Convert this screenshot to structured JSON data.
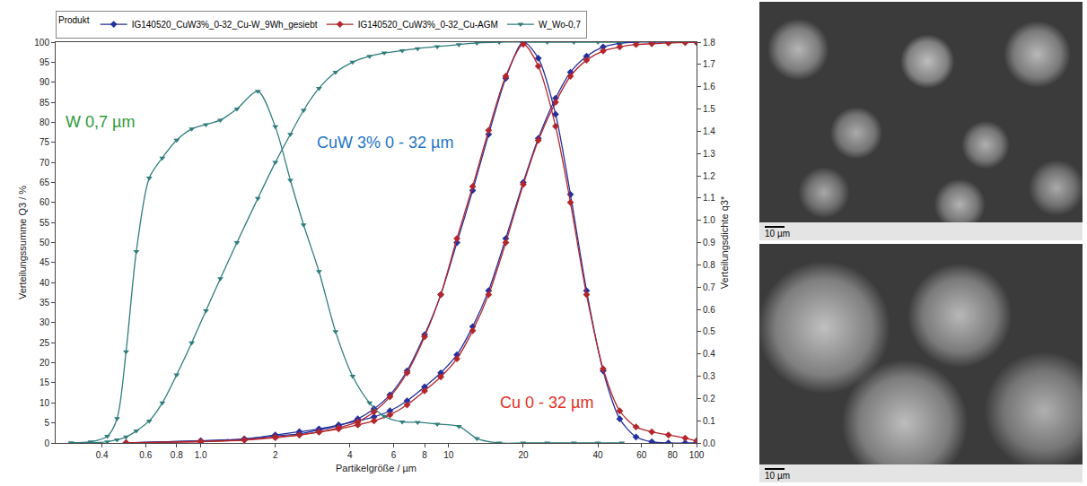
{
  "chart_data": {
    "type": "line",
    "xlabel": "Partikelgröße / µm",
    "ylabel": "Verteilungssumme Q3 / %",
    "y2label": "Verteilungsdichte q3*",
    "legend_title": "Produkt",
    "legend": "top",
    "log": "x",
    "grid": false,
    "xlim": [
      0.26,
      100
    ],
    "xticks": [
      0.4,
      0.6,
      0.8,
      {
        "value": 1,
        "label": "1.0"
      },
      2,
      4,
      6,
      8,
      10,
      20,
      40,
      60,
      80,
      100
    ],
    "ylim": [
      0,
      100
    ],
    "yticks": [
      0,
      5,
      10,
      15,
      20,
      25,
      30,
      35,
      40,
      45,
      50,
      55,
      60,
      65,
      70,
      75,
      80,
      85,
      90,
      95,
      100
    ],
    "y2lim": [
      0,
      1.8
    ],
    "y2ticks": [
      {
        "value": 0,
        "label": "0.0"
      },
      0.1,
      0.2,
      0.3,
      0.4,
      0.5,
      0.6,
      0.7,
      0.8,
      0.9,
      {
        "value": 1,
        "label": "1.0"
      },
      1.1,
      1.2,
      1.3,
      1.4,
      1.5,
      1.6,
      1.7,
      1.8
    ],
    "series": [
      {
        "name": "IG140520_CuW3%_0-32_Cu-W_9Wh_gesiebt",
        "color": "#24309e",
        "marker": "diamond",
        "line_style": "solid",
        "axis": "y",
        "x": [
          0.5,
          1,
          1.5,
          2,
          2.5,
          3,
          3.6,
          4.3,
          5,
          5.8,
          6.8,
          8,
          9.3,
          10.8,
          12.5,
          14.5,
          17,
          20,
          23,
          27,
          31,
          36,
          42,
          49,
          57,
          66,
          77,
          90,
          100
        ],
        "values": [
          0,
          0.5,
          1,
          2,
          2.8,
          3.5,
          4.5,
          5.5,
          6.5,
          8,
          10.5,
          14,
          17.5,
          22,
          29,
          38,
          51,
          65,
          76,
          86,
          92.5,
          96.5,
          98.8,
          99.7,
          100,
          100,
          100,
          100,
          100
        ]
      },
      {
        "name": "IG140520_CuW3%_0-32_Cu-AGM",
        "color": "#b3262b",
        "marker": "diamond",
        "line_style": "solid",
        "axis": "y",
        "x": [
          0.5,
          1,
          1.5,
          2,
          2.5,
          3,
          3.6,
          4.3,
          5,
          5.8,
          6.8,
          8,
          9.3,
          10.8,
          12.5,
          14.5,
          17,
          20,
          23,
          27,
          31,
          36,
          42,
          49,
          57,
          66,
          77,
          90,
          100
        ],
        "values": [
          0,
          0.3,
          0.7,
          1.3,
          2,
          2.7,
          3.5,
          4.5,
          5.5,
          7,
          9.5,
          13,
          16.5,
          21,
          28,
          37,
          50,
          64.5,
          75.5,
          85,
          91.5,
          95.5,
          97.8,
          98.8,
          99.4,
          99.6,
          99.8,
          99.9,
          100
        ]
      },
      {
        "name": "W_Wo-0,7",
        "color": "#2f7d7a",
        "marker": "triangle-down",
        "line_style": "solid",
        "axis": "y",
        "x": [
          0.3,
          0.36,
          0.42,
          0.46,
          0.5,
          0.55,
          0.62,
          0.7,
          0.8,
          0.92,
          1.05,
          1.2,
          1.4,
          1.7,
          2.0,
          2.3,
          2.6,
          3.0,
          3.5,
          4.1,
          4.8,
          5.5,
          6.5,
          7.5,
          9,
          11,
          13,
          16,
          20,
          25,
          32,
          40,
          50
        ],
        "values": [
          0,
          0,
          0.3,
          0.8,
          1.5,
          3,
          5.5,
          10,
          17,
          25,
          33,
          41,
          50,
          61,
          70,
          77,
          83,
          88.5,
          92.5,
          95,
          96.5,
          97.3,
          97.9,
          98.4,
          98.9,
          99.4,
          99.8,
          100,
          100,
          100,
          100,
          100,
          100
        ]
      },
      {
        "name": "IG140520_CuW3%_0-32_Cu-W_9Wh_gesiebt",
        "color": "#24309e",
        "marker": "diamond",
        "line_style": "solid",
        "axis": "y2",
        "x": [
          0.5,
          1,
          1.5,
          2,
          2.5,
          3,
          3.6,
          4.3,
          5,
          5.8,
          6.8,
          8,
          9.3,
          10.8,
          12.5,
          14.5,
          17,
          20,
          23,
          27,
          31,
          36,
          42,
          49,
          57,
          66,
          77,
          90,
          100
        ],
        "values": [
          0,
          0.009,
          0.018,
          0.032,
          0.041,
          0.058,
          0.077,
          0.108,
          0.153,
          0.216,
          0.324,
          0.486,
          0.666,
          0.9,
          1.134,
          1.386,
          1.638,
          1.8,
          1.728,
          1.476,
          1.116,
          0.684,
          0.324,
          0.108,
          0.027,
          0.005,
          0,
          0,
          0
        ]
      },
      {
        "name": "IG140520_CuW3%_0-32_Cu-AGM",
        "color": "#b3262b",
        "marker": "diamond",
        "line_style": "solid",
        "axis": "y2",
        "x": [
          0.5,
          1,
          1.5,
          2,
          2.5,
          3,
          3.6,
          4.3,
          5,
          5.8,
          6.8,
          8,
          9.3,
          10.8,
          12.5,
          14.5,
          17,
          20,
          23,
          27,
          31,
          36,
          42,
          49,
          57,
          66,
          77,
          90,
          100
        ],
        "values": [
          0,
          0.007,
          0.014,
          0.027,
          0.036,
          0.05,
          0.068,
          0.095,
          0.14,
          0.207,
          0.315,
          0.477,
          0.666,
          0.918,
          1.152,
          1.404,
          1.647,
          1.791,
          1.692,
          1.422,
          1.08,
          0.666,
          0.333,
          0.144,
          0.072,
          0.05,
          0.036,
          0.022,
          0.009
        ]
      },
      {
        "name": "W_Wo-0,7",
        "color": "#2f7d7a",
        "marker": "triangle-down",
        "line_style": "solid",
        "axis": "y2",
        "x": [
          0.3,
          0.36,
          0.42,
          0.46,
          0.5,
          0.55,
          0.62,
          0.7,
          0.8,
          0.92,
          1.05,
          1.2,
          1.4,
          1.7,
          2.0,
          2.3,
          2.6,
          3.0,
          3.5,
          4.1,
          4.8,
          5.5,
          6.5,
          7.5,
          9,
          11,
          13,
          16,
          20,
          25,
          32,
          40,
          50
        ],
        "values": [
          0,
          0.005,
          0.03,
          0.11,
          0.41,
          0.86,
          1.19,
          1.28,
          1.36,
          1.41,
          1.43,
          1.45,
          1.5,
          1.58,
          1.42,
          1.18,
          0.98,
          0.77,
          0.5,
          0.3,
          0.18,
          0.12,
          0.095,
          0.093,
          0.085,
          0.075,
          0.02,
          0,
          0,
          0,
          0,
          0,
          0
        ]
      }
    ],
    "annotations": [
      {
        "text": "W 0,7 µm",
        "color": "#2e9a3a"
      },
      {
        "text": "CuW 3% 0 - 32 µm",
        "color": "#2474c6"
      },
      {
        "text": "Cu 0 - 32 µm",
        "color": "#e0301e"
      }
    ]
  },
  "images": [
    {
      "scale_bar": "10 µm"
    },
    {
      "scale_bar": "10 µm"
    }
  ]
}
